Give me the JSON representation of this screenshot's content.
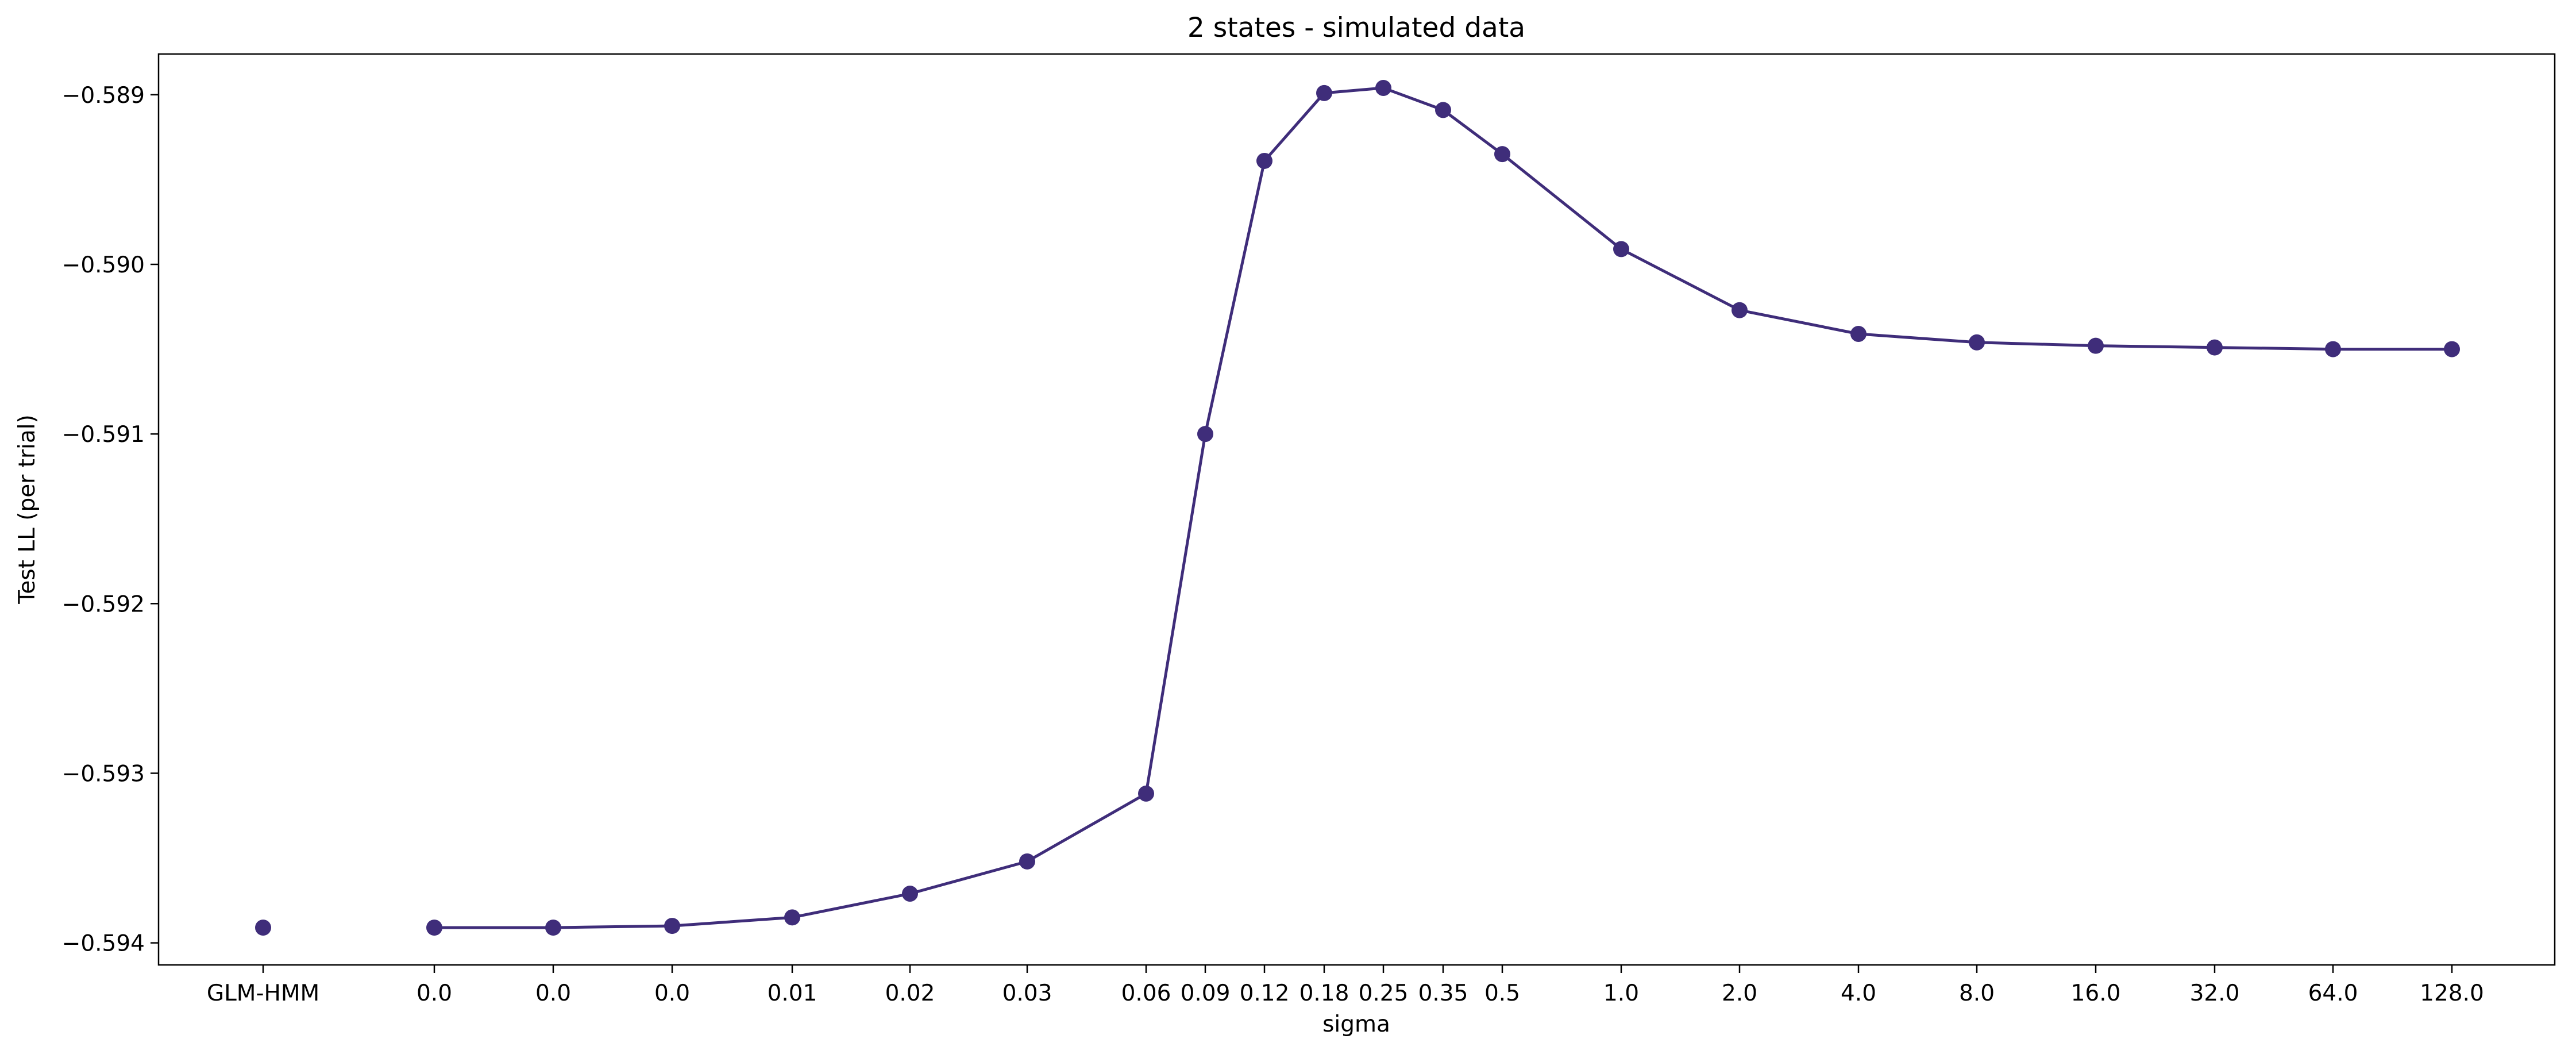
{
  "chart_data": {
    "type": "line",
    "title": "2 states - simulated data",
    "xlabel": "sigma",
    "ylabel": "Test LL (per trial)",
    "x_tick_labels": [
      "GLM-HMM",
      "0.0",
      "0.0",
      "0.0",
      "0.01",
      "0.02",
      "0.03",
      "0.06",
      "0.09",
      "0.12",
      "0.18",
      "0.25",
      "0.35",
      "0.5",
      "1.0",
      "2.0",
      "4.0",
      "8.0",
      "16.0",
      "32.0",
      "64.0",
      "128.0"
    ],
    "y_ticks": [
      -0.594,
      -0.593,
      -0.592,
      -0.591,
      -0.59,
      -0.589
    ],
    "y_tick_labels": [
      "−0.594",
      "−0.593",
      "−0.592",
      "−0.591",
      "−0.590",
      "−0.589"
    ],
    "ylim": [
      -0.59413,
      -0.58876
    ],
    "grid": false,
    "color": "#3f2d7a",
    "baseline": {
      "label": "GLM-HMM",
      "value": -0.59391
    },
    "series": [
      {
        "x": [
          "0.0",
          "0.0",
          "0.0",
          "0.01",
          "0.02",
          "0.03",
          "0.06",
          "0.09",
          "0.12",
          "0.18",
          "0.25",
          "0.35",
          "0.5",
          "1.0",
          "2.0",
          "4.0",
          "8.0",
          "16.0",
          "32.0",
          "64.0",
          "128.0"
        ],
        "values": [
          -0.59391,
          -0.59391,
          -0.5939,
          -0.59385,
          -0.59371,
          -0.59352,
          -0.59312,
          -0.591,
          -0.58939,
          -0.58899,
          -0.58896,
          -0.58909,
          -0.58935,
          -0.58991,
          -0.59027,
          -0.59041,
          -0.59046,
          -0.59048,
          -0.59049,
          -0.5905,
          -0.5905
        ]
      }
    ]
  }
}
